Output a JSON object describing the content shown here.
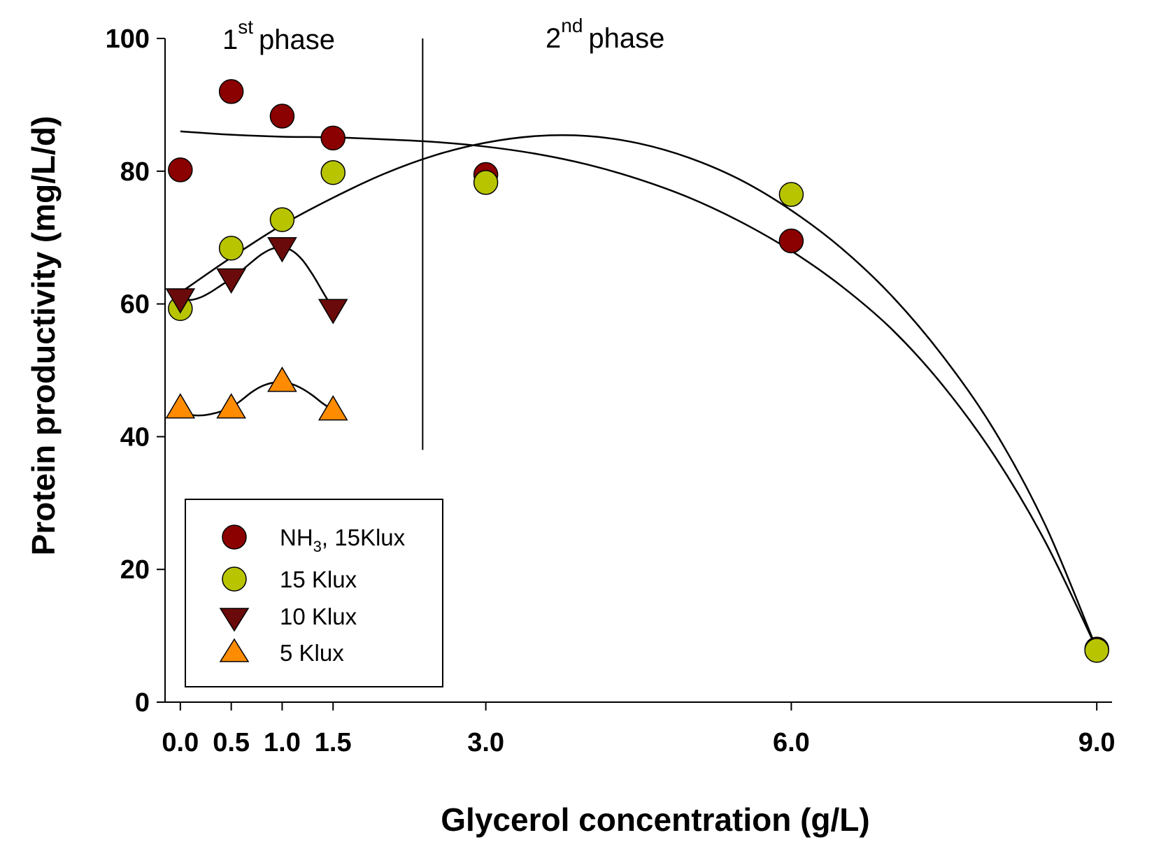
{
  "chart_data": {
    "type": "scatter",
    "title": "",
    "xlabel": "Glycerol concentration (g/L)",
    "ylabel": "Protein productivity (mg/L/d)",
    "xlim": [
      -0.15,
      9.15
    ],
    "ylim": [
      0,
      100
    ],
    "x_tick_labels": [
      "0.0",
      "0.5",
      "1.0",
      "1.5",
      "3.0",
      "6.0",
      "9.0"
    ],
    "x_ticks": [
      0,
      0.5,
      1.0,
      1.5,
      3.0,
      6.0,
      9.0
    ],
    "y_ticks": [
      0,
      20,
      40,
      60,
      80,
      100
    ],
    "grid": false,
    "legend_position": "lower-left",
    "phase_divider_x": 2.38,
    "phase_divider_ymin": 38,
    "phase1": {
      "base": "1",
      "sup": "st",
      "word": "phase"
    },
    "phase2": {
      "base": "2",
      "sup": "nd",
      "word": "phase"
    },
    "series": [
      {
        "name": "NH3, 15Klux",
        "legend_main": "NH",
        "legend_sub": "3",
        "legend_rest": ", 15Klux",
        "marker": "circle",
        "color": "#8b0000",
        "x": [
          0.0,
          0.5,
          1.0,
          1.5,
          3.0,
          6.0,
          9.0
        ],
        "y": [
          80.2,
          92.0,
          88.3,
          85.0,
          79.5,
          69.5,
          8.0
        ],
        "fit_x": [
          0.0,
          0.5,
          1.0,
          1.5,
          2.0,
          2.5,
          3.0,
          3.5,
          4.0,
          4.5,
          5.0,
          5.5,
          6.0,
          6.5,
          7.0,
          7.5,
          8.0,
          8.5,
          9.0
        ],
        "fit_y": [
          86.0,
          85.5,
          85.2,
          85.1,
          84.8,
          84.4,
          83.7,
          82.6,
          81.0,
          78.8,
          76.0,
          72.4,
          68.0,
          62.6,
          56.0,
          47.5,
          37.0,
          24.0,
          8.0
        ]
      },
      {
        "name": "15 Klux",
        "legend_main": "15 Klux",
        "marker": "circle",
        "color": "#b8c400",
        "x": [
          0.0,
          0.5,
          1.0,
          1.5,
          3.0,
          6.0,
          9.0
        ],
        "y": [
          59.3,
          68.4,
          72.7,
          79.8,
          78.3,
          76.5,
          7.8
        ],
        "fit_x": [
          0.0,
          0.5,
          1.0,
          1.5,
          2.0,
          2.5,
          3.0,
          3.5,
          4.0,
          4.5,
          5.0,
          5.5,
          6.0,
          6.5,
          7.0,
          7.5,
          8.0,
          8.5,
          9.0
        ],
        "fit_y": [
          61.7,
          67.0,
          71.9,
          76.0,
          79.6,
          82.4,
          84.3,
          85.3,
          85.3,
          84.2,
          82.0,
          78.7,
          74.1,
          68.3,
          61.0,
          51.9,
          40.8,
          26.5,
          8.0
        ]
      },
      {
        "name": "10 Klux",
        "legend_main": "10 Klux",
        "marker": "triangle-down",
        "color": "#6b0a0a",
        "x": [
          0.0,
          0.5,
          1.0,
          1.5
        ],
        "y": [
          60.8,
          63.8,
          68.5,
          59.2
        ],
        "fit_x": [
          0.0,
          0.1,
          0.2,
          0.3,
          0.4,
          0.5,
          0.6,
          0.7,
          0.8,
          0.9,
          1.0,
          1.1,
          1.2,
          1.3,
          1.4,
          1.5
        ],
        "fit_y": [
          60.8,
          60.6,
          61.0,
          61.8,
          62.8,
          63.8,
          65.0,
          66.3,
          67.5,
          68.3,
          68.5,
          68.0,
          66.6,
          64.4,
          61.8,
          59.2
        ]
      },
      {
        "name": "5 Klux",
        "legend_main": "5 Klux",
        "marker": "triangle-up",
        "color": "#ff8c00",
        "x": [
          0.0,
          0.5,
          1.0,
          1.5
        ],
        "y": [
          44.3,
          44.3,
          48.3,
          44.0
        ],
        "fit_x": [
          0.0,
          0.1,
          0.2,
          0.3,
          0.4,
          0.5,
          0.6,
          0.7,
          0.8,
          0.9,
          1.0,
          1.1,
          1.2,
          1.3,
          1.4,
          1.5
        ],
        "fit_y": [
          44.0,
          43.3,
          43.2,
          43.4,
          43.8,
          44.4,
          45.5,
          46.7,
          47.6,
          48.1,
          48.2,
          47.9,
          47.2,
          46.2,
          45.0,
          44.0
        ]
      }
    ]
  }
}
